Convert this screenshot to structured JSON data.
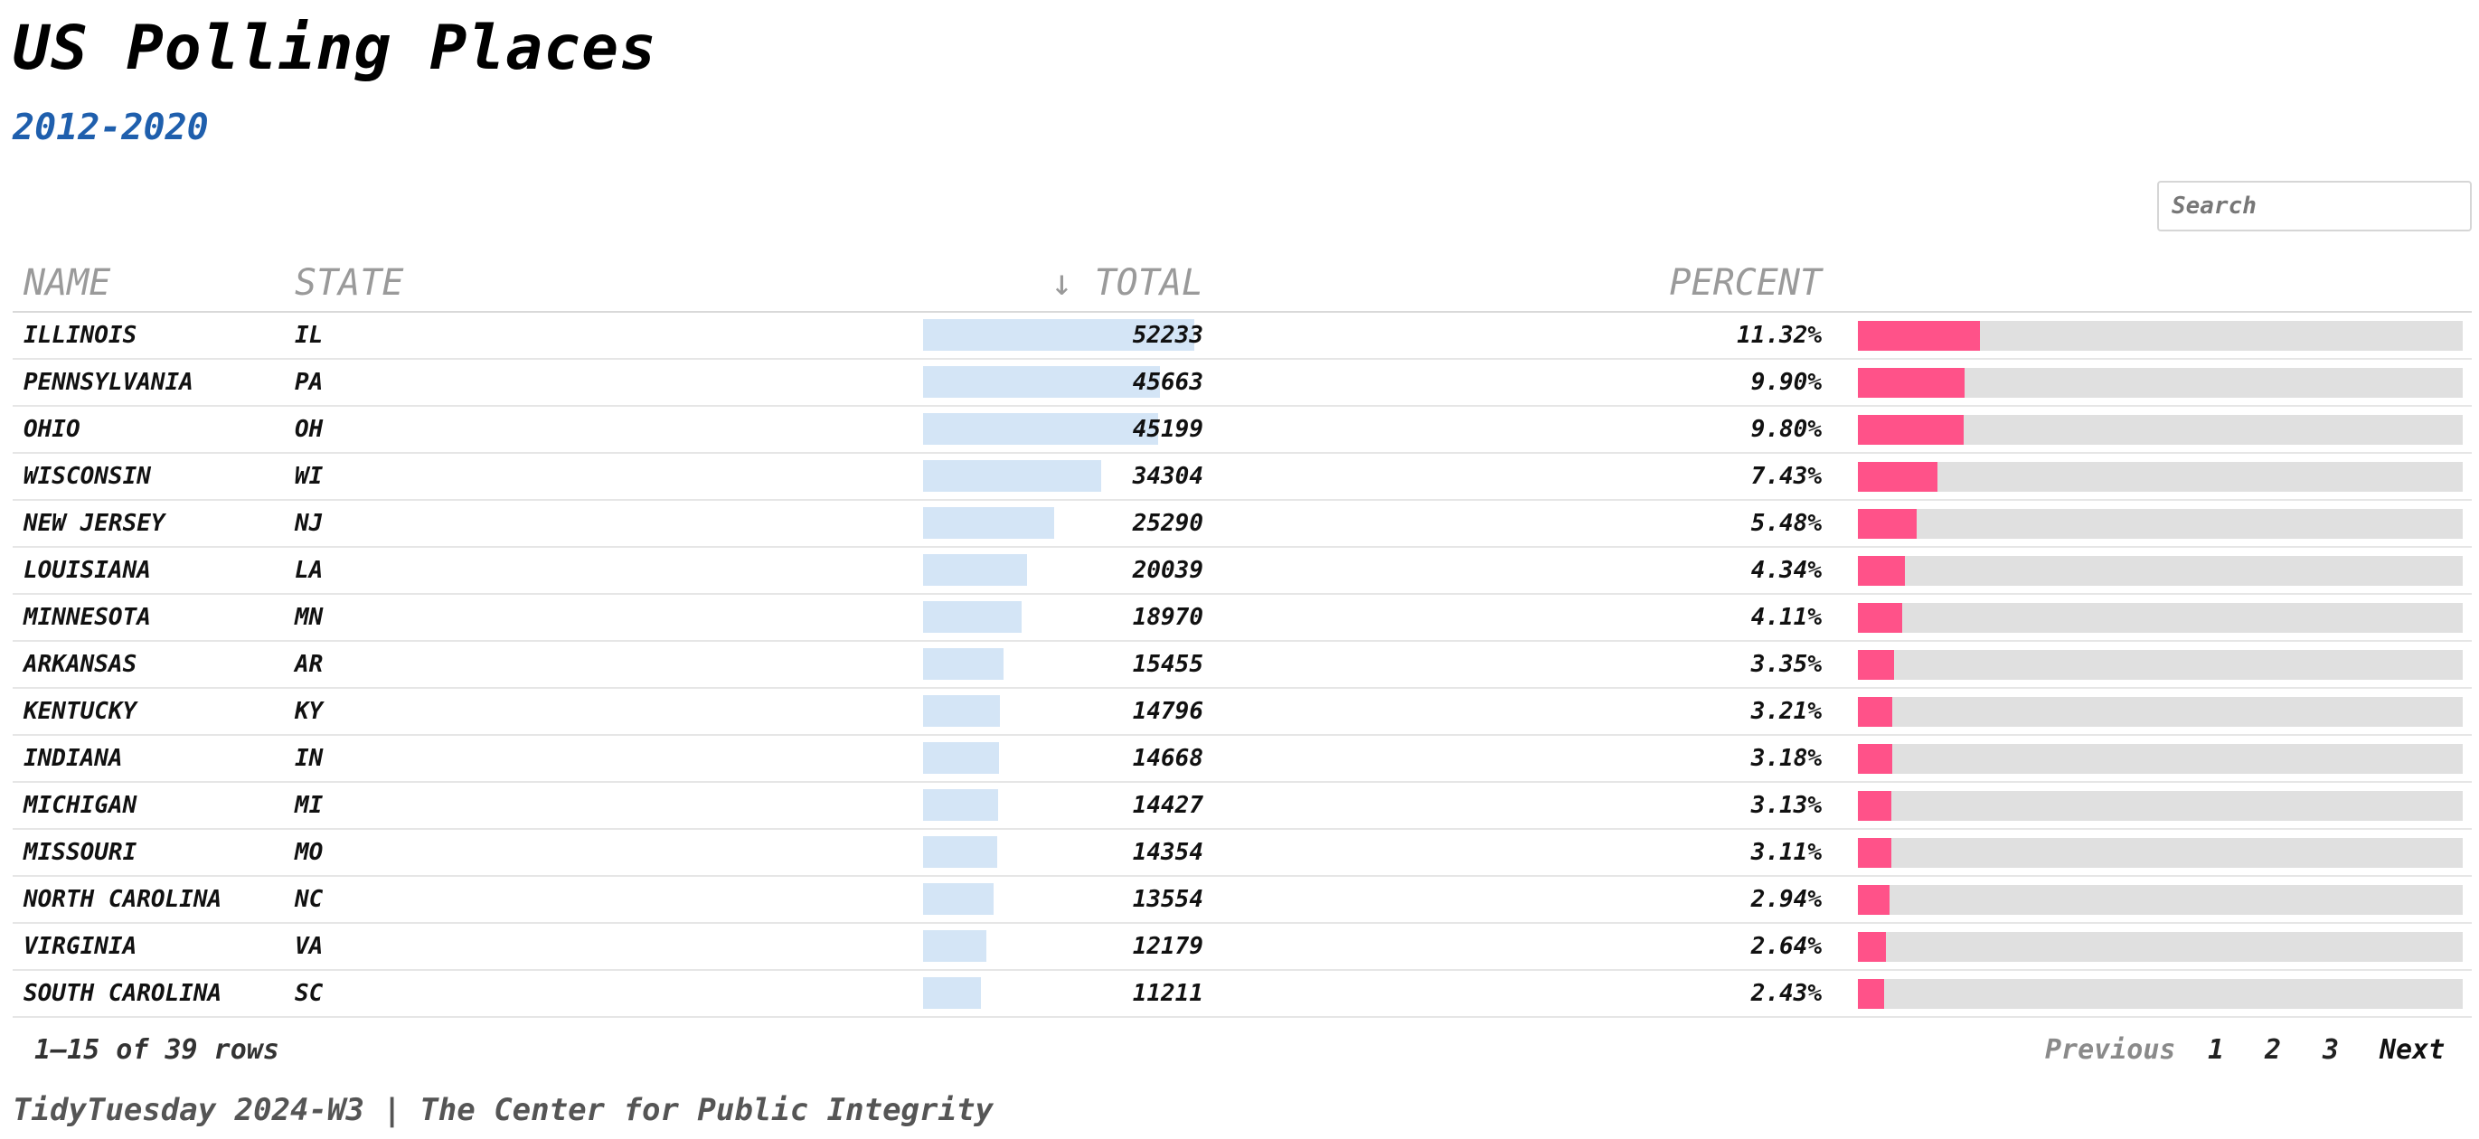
{
  "header": {
    "title": "US Polling Places",
    "subtitle": "2012-2020"
  },
  "search": {
    "placeholder": "Search"
  },
  "table": {
    "columns": {
      "name": "NAME",
      "state": "STATE",
      "total": "↓ TOTAL",
      "percent": "PERCENT"
    },
    "total_max": 52233,
    "percent_max": 100,
    "rows": [
      {
        "name": "ILLINOIS",
        "state": "IL",
        "total": "52233",
        "percent": "11.32%",
        "total_value": 52233,
        "percent_value": 11.32
      },
      {
        "name": "PENNSYLVANIA",
        "state": "PA",
        "total": "45663",
        "percent": "9.90%",
        "total_value": 45663,
        "percent_value": 9.9
      },
      {
        "name": "OHIO",
        "state": "OH",
        "total": "45199",
        "percent": "9.80%",
        "total_value": 45199,
        "percent_value": 9.8
      },
      {
        "name": "WISCONSIN",
        "state": "WI",
        "total": "34304",
        "percent": "7.43%",
        "total_value": 34304,
        "percent_value": 7.43
      },
      {
        "name": "NEW JERSEY",
        "state": "NJ",
        "total": "25290",
        "percent": "5.48%",
        "total_value": 25290,
        "percent_value": 5.48
      },
      {
        "name": "LOUISIANA",
        "state": "LA",
        "total": "20039",
        "percent": "4.34%",
        "total_value": 20039,
        "percent_value": 4.34
      },
      {
        "name": "MINNESOTA",
        "state": "MN",
        "total": "18970",
        "percent": "4.11%",
        "total_value": 18970,
        "percent_value": 4.11
      },
      {
        "name": "ARKANSAS",
        "state": "AR",
        "total": "15455",
        "percent": "3.35%",
        "total_value": 15455,
        "percent_value": 3.35
      },
      {
        "name": "KENTUCKY",
        "state": "KY",
        "total": "14796",
        "percent": "3.21%",
        "total_value": 14796,
        "percent_value": 3.21
      },
      {
        "name": "INDIANA",
        "state": "IN",
        "total": "14668",
        "percent": "3.18%",
        "total_value": 14668,
        "percent_value": 3.18
      },
      {
        "name": "MICHIGAN",
        "state": "MI",
        "total": "14427",
        "percent": "3.13%",
        "total_value": 14427,
        "percent_value": 3.13
      },
      {
        "name": "MISSOURI",
        "state": "MO",
        "total": "14354",
        "percent": "3.11%",
        "total_value": 14354,
        "percent_value": 3.11
      },
      {
        "name": "NORTH CAROLINA",
        "state": "NC",
        "total": "13554",
        "percent": "2.94%",
        "total_value": 13554,
        "percent_value": 2.94
      },
      {
        "name": "VIRGINIA",
        "state": "VA",
        "total": "12179",
        "percent": "2.64%",
        "total_value": 12179,
        "percent_value": 2.64
      },
      {
        "name": "SOUTH CAROLINA",
        "state": "SC",
        "total": "11211",
        "percent": "2.43%",
        "total_value": 11211,
        "percent_value": 2.43
      }
    ]
  },
  "pagination": {
    "info": "1–15 of 39 rows",
    "previous_label": "Previous",
    "pages": [
      "1",
      "2",
      "3"
    ],
    "next_label": "Next"
  },
  "caption": "TidyTuesday 2024-W3 | The Center for Public Integrity",
  "colors": {
    "subtitle": "#1f5fad",
    "total_bar": "#d4e5f6",
    "percent_bar": "#ff5289",
    "percent_track": "#e0e0e0"
  }
}
